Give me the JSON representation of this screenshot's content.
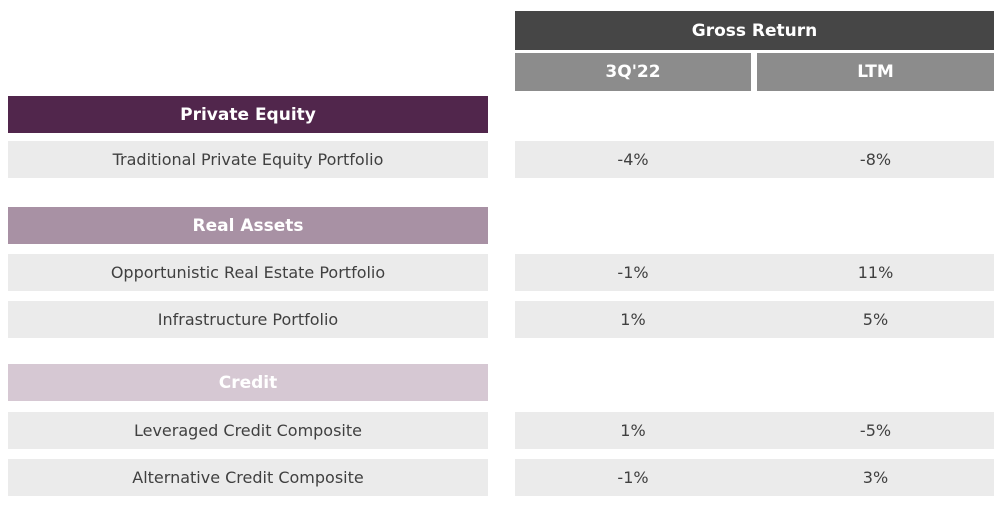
{
  "chart_data": {
    "type": "table",
    "header": "Gross Return",
    "columns": [
      "3Q'22",
      "LTM"
    ],
    "categories": [
      {
        "name": "Private Equity",
        "color": "#51264c",
        "rows": [
          {
            "label": "Traditional Private Equity Portfolio",
            "q3": "-4%",
            "ltm": "-8%"
          }
        ]
      },
      {
        "name": "Real Assets",
        "color": "#a891a4",
        "rows": [
          {
            "label": "Opportunistic Real Estate Portfolio",
            "q3": "-1%",
            "ltm": "11%"
          },
          {
            "label": "Infrastructure Portfolio",
            "q3": "1%",
            "ltm": "5%"
          }
        ]
      },
      {
        "name": "Credit",
        "color": "#d6c8d3",
        "rows": [
          {
            "label": "Leveraged Credit Composite",
            "q3": "1%",
            "ltm": "-5%"
          },
          {
            "label": "Alternative Credit Composite",
            "q3": "-1%",
            "ltm": "3%"
          }
        ]
      }
    ]
  }
}
